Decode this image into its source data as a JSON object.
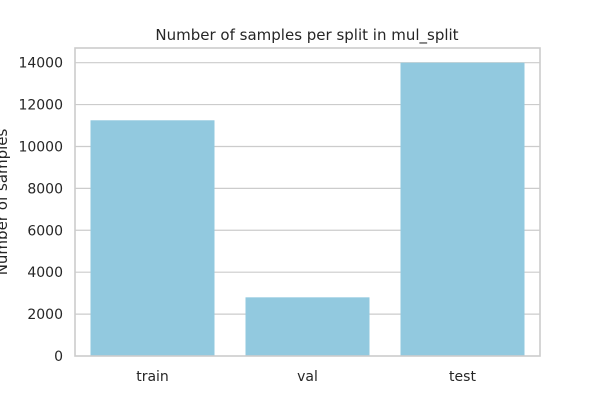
{
  "chart_data": {
    "type": "bar",
    "title": "Number of samples per split in mul_split",
    "xlabel": "",
    "ylabel": "Number of samples",
    "categories": [
      "train",
      "val",
      "test"
    ],
    "values": [
      11250,
      2800,
      14000
    ],
    "ylim": [
      0,
      14700
    ],
    "yticks": [
      0,
      2000,
      4000,
      6000,
      8000,
      10000,
      12000,
      14000
    ],
    "ytick_labels": [
      "0",
      "2000",
      "4000",
      "6000",
      "8000",
      "10000",
      "12000",
      "14000"
    ],
    "bar_color": "#92c9df",
    "grid": true,
    "legend": "none"
  }
}
